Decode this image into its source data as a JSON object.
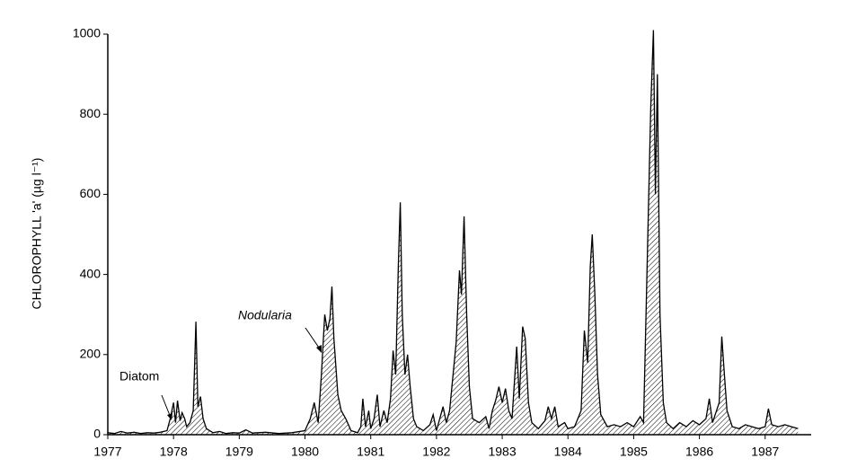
{
  "chart_data": {
    "type": "area",
    "y_label": "CHLOROPHYLL 'a' (µg l⁻¹)",
    "annotations": [
      {
        "text": "Diatom"
      },
      {
        "text": "Nodularia"
      }
    ],
    "color": "#000000",
    "xlim": [
      1977,
      1987.7
    ],
    "xticks": [
      1977,
      1978,
      1979,
      1980,
      1981,
      1982,
      1983,
      1984,
      1985,
      1986,
      1987
    ],
    "ylim": [
      0,
      1000
    ],
    "yticks": [
      0,
      200,
      400,
      600,
      800,
      1000
    ],
    "x": [
      1977.0,
      1977.1,
      1977.2,
      1977.3,
      1977.4,
      1977.5,
      1977.6,
      1977.7,
      1977.8,
      1977.9,
      1977.95,
      1978.0,
      1978.03,
      1978.06,
      1978.1,
      1978.13,
      1978.17,
      1978.2,
      1978.25,
      1978.3,
      1978.34,
      1978.37,
      1978.41,
      1978.45,
      1978.5,
      1978.6,
      1978.7,
      1978.8,
      1978.9,
      1979.0,
      1979.1,
      1979.2,
      1979.4,
      1979.6,
      1979.8,
      1980.0,
      1980.08,
      1980.14,
      1980.2,
      1980.25,
      1980.3,
      1980.34,
      1980.38,
      1980.41,
      1980.44,
      1980.5,
      1980.55,
      1980.62,
      1980.7,
      1980.8,
      1980.85,
      1980.88,
      1980.92,
      1980.97,
      1981.0,
      1981.05,
      1981.1,
      1981.14,
      1981.2,
      1981.25,
      1981.3,
      1981.34,
      1981.38,
      1981.42,
      1981.45,
      1981.48,
      1981.52,
      1981.56,
      1981.6,
      1981.65,
      1981.7,
      1981.8,
      1981.9,
      1981.95,
      1982.0,
      1982.1,
      1982.15,
      1982.2,
      1982.3,
      1982.35,
      1982.38,
      1982.42,
      1982.46,
      1982.5,
      1982.55,
      1982.65,
      1982.75,
      1982.8,
      1982.85,
      1982.9,
      1982.95,
      1983.0,
      1983.05,
      1983.1,
      1983.15,
      1983.22,
      1983.26,
      1983.31,
      1983.35,
      1983.4,
      1983.45,
      1983.55,
      1983.65,
      1983.7,
      1983.75,
      1983.8,
      1983.85,
      1983.95,
      1984.0,
      1984.1,
      1984.2,
      1984.25,
      1984.3,
      1984.34,
      1984.37,
      1984.41,
      1984.45,
      1984.5,
      1984.6,
      1984.7,
      1984.8,
      1984.9,
      1985.0,
      1985.1,
      1985.15,
      1985.26,
      1985.3,
      1985.33,
      1985.36,
      1985.4,
      1985.45,
      1985.5,
      1985.6,
      1985.7,
      1985.8,
      1985.9,
      1986.0,
      1986.1,
      1986.15,
      1986.2,
      1986.3,
      1986.34,
      1986.38,
      1986.42,
      1986.5,
      1986.6,
      1986.7,
      1986.8,
      1986.9,
      1987.0,
      1987.05,
      1987.1,
      1987.2,
      1987.3,
      1987.4,
      1987.5
    ],
    "values": [
      5,
      3,
      8,
      4,
      6,
      3,
      5,
      4,
      6,
      10,
      40,
      80,
      30,
      85,
      35,
      55,
      40,
      20,
      30,
      60,
      282,
      70,
      95,
      40,
      15,
      5,
      8,
      3,
      5,
      4,
      12,
      4,
      6,
      3,
      5,
      10,
      40,
      80,
      30,
      150,
      300,
      260,
      290,
      370,
      240,
      100,
      60,
      40,
      10,
      5,
      20,
      90,
      20,
      60,
      15,
      40,
      100,
      20,
      60,
      30,
      90,
      210,
      150,
      420,
      580,
      300,
      150,
      200,
      120,
      40,
      20,
      10,
      25,
      50,
      10,
      70,
      30,
      60,
      230,
      410,
      350,
      545,
      300,
      120,
      40,
      30,
      45,
      15,
      60,
      85,
      120,
      80,
      115,
      60,
      40,
      220,
      90,
      270,
      240,
      80,
      30,
      15,
      35,
      70,
      40,
      70,
      20,
      30,
      15,
      20,
      60,
      260,
      180,
      420,
      500,
      350,
      150,
      50,
      20,
      25,
      20,
      30,
      20,
      45,
      30,
      815,
      1010,
      600,
      900,
      300,
      80,
      30,
      15,
      30,
      20,
      35,
      25,
      40,
      90,
      30,
      80,
      245,
      150,
      60,
      20,
      15,
      25,
      20,
      15,
      20,
      65,
      25,
      20,
      25,
      20,
      15
    ]
  }
}
